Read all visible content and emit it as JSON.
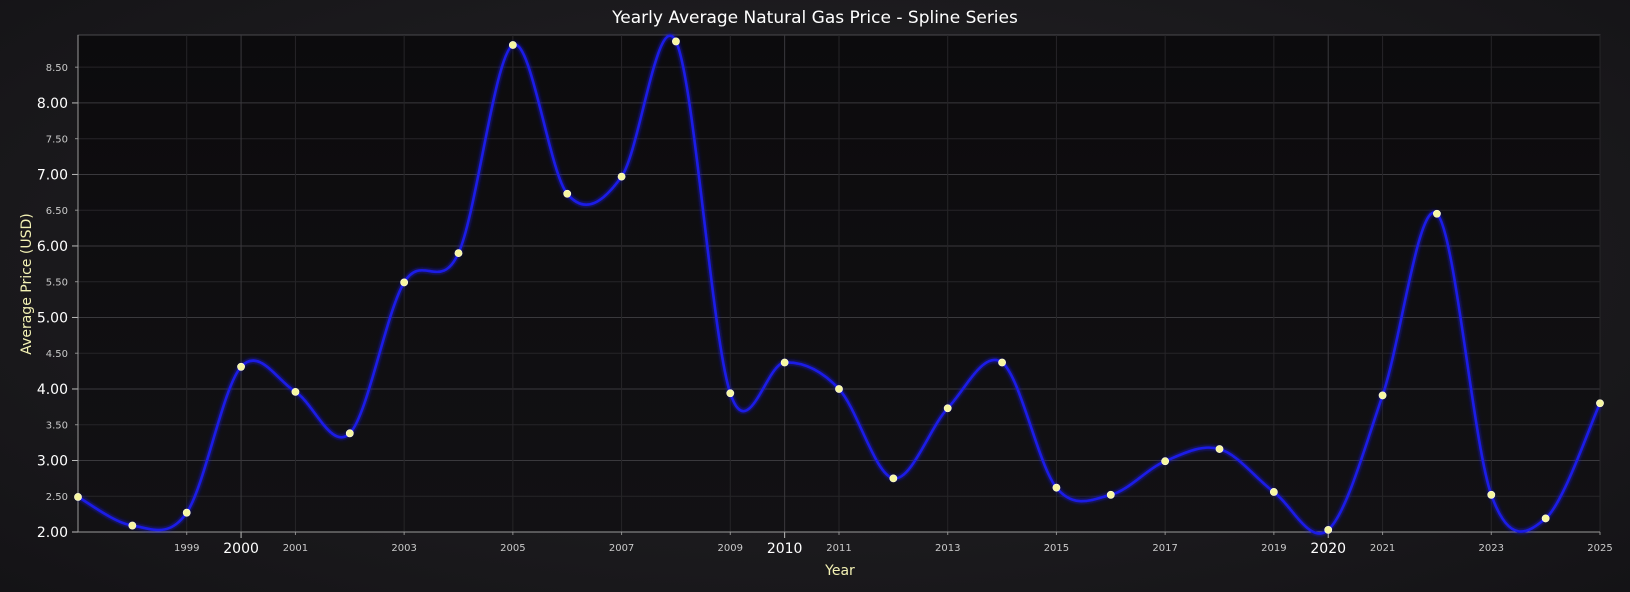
{
  "chart_data": {
    "type": "line",
    "title": "Yearly Average Natural Gas Price - Spline Series",
    "xlabel": "Year",
    "ylabel": "Average Price (USD)",
    "xlim": [
      1997,
      2025
    ],
    "ylim": [
      2.0,
      8.95
    ],
    "grid": true,
    "x_major_ticks": [
      2000,
      2010,
      2020
    ],
    "x_minor_ticks": [
      1999,
      2001,
      2003,
      2005,
      2007,
      2009,
      2011,
      2013,
      2015,
      2017,
      2019,
      2021,
      2023,
      2025
    ],
    "y_major_ticks": [
      "2.00",
      "3.00",
      "4.00",
      "5.00",
      "6.00",
      "7.00",
      "8.00"
    ],
    "y_minor_ticks": [
      "2.50",
      "3.50",
      "4.50",
      "5.50",
      "6.50",
      "7.50",
      "8.50"
    ],
    "colors": {
      "line": "#1a1ae6",
      "marker": "#f7f7a0"
    },
    "series": [
      {
        "x": [
          1997,
          1998,
          1999,
          2000,
          2001,
          2002,
          2003,
          2004,
          2005,
          2006,
          2007,
          2008,
          2009,
          2010,
          2011,
          2012,
          2013,
          2014,
          2015,
          2016,
          2017,
          2018,
          2019,
          2020,
          2021,
          2022,
          2023,
          2024,
          2025
        ],
        "values": [
          2.49,
          2.09,
          2.27,
          4.31,
          3.96,
          3.38,
          5.49,
          5.9,
          8.81,
          6.73,
          6.97,
          8.86,
          3.94,
          4.37,
          4.0,
          2.75,
          3.73,
          4.37,
          2.62,
          2.52,
          2.99,
          3.16,
          2.56,
          2.03,
          3.91,
          6.45,
          2.52,
          2.19,
          3.8
        ]
      }
    ]
  }
}
